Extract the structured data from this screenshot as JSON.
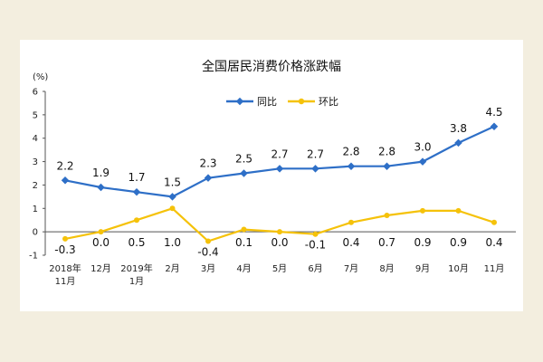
{
  "colors": {
    "background": "#f3eedf",
    "panel": "#ffffff",
    "yoy": "#2e6fc7",
    "mom": "#f5c20a"
  },
  "chart_data": {
    "type": "line",
    "title": "全国居民消费价格涨跌幅",
    "ylabel": "(%)",
    "ylim": [
      -1,
      6
    ],
    "yticks": [
      6,
      5,
      4,
      3,
      2,
      1,
      0,
      -1
    ],
    "grid": false,
    "legend": "top-center",
    "categories": [
      [
        "2018年",
        "11月"
      ],
      [
        "12月"
      ],
      [
        "2019年",
        "1月"
      ],
      [
        "2月"
      ],
      [
        "3月"
      ],
      [
        "4月"
      ],
      [
        "5月"
      ],
      [
        "6月"
      ],
      [
        "7月"
      ],
      [
        "8月"
      ],
      [
        "9月"
      ],
      [
        "10月"
      ],
      [
        "11月"
      ]
    ],
    "series": [
      {
        "name": "同比",
        "color": "#2e6fc7",
        "marker": "diamond",
        "values": [
          2.2,
          1.9,
          1.7,
          1.5,
          2.3,
          2.5,
          2.7,
          2.7,
          2.8,
          2.8,
          3.0,
          3.8,
          4.5
        ],
        "labels": [
          "2.2",
          "1.9",
          "1.7",
          "1.5",
          "2.3",
          "2.5",
          "2.7",
          "2.7",
          "2.8",
          "2.8",
          "3.0",
          "3.8",
          "4.5"
        ]
      },
      {
        "name": "环比",
        "color": "#f5c20a",
        "marker": "circle",
        "values": [
          -0.3,
          0.0,
          0.5,
          1.0,
          -0.4,
          0.1,
          0.0,
          -0.1,
          0.4,
          0.7,
          0.9,
          0.9,
          0.4
        ],
        "labels": [
          "-0.3",
          "0.0",
          "0.5",
          "1.0",
          "-0.4",
          "0.1",
          "0.0",
          "-0.1",
          "0.4",
          "0.7",
          "0.9",
          "0.9",
          "0.4"
        ]
      }
    ]
  }
}
